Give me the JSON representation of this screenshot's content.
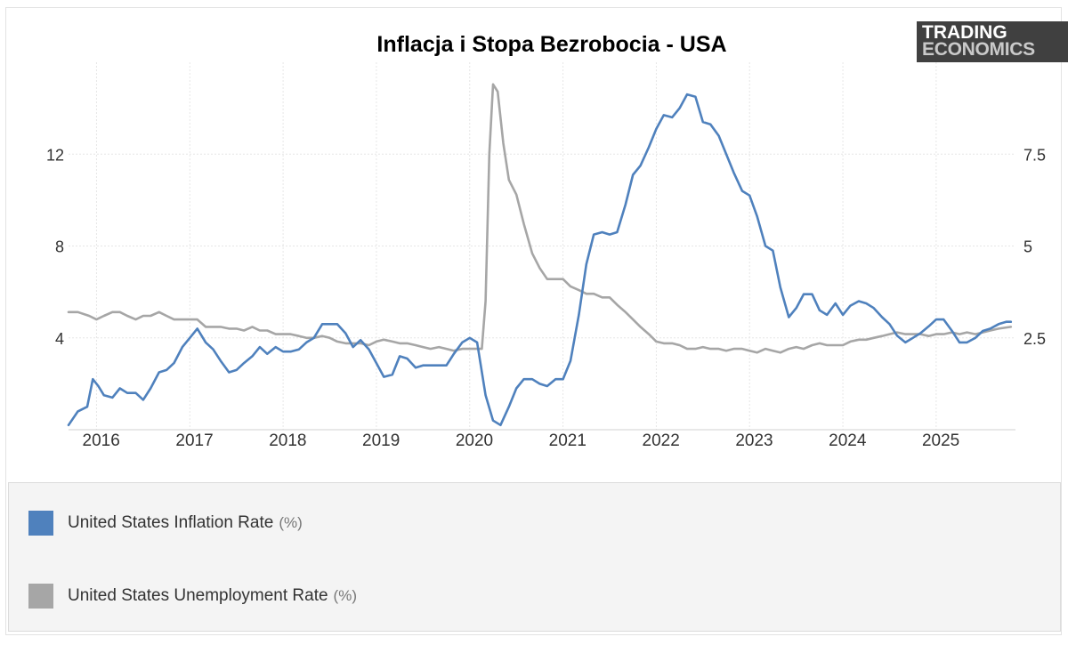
{
  "chart_data": {
    "type": "line",
    "title": "Inflacja i Stopa Bezrobocia - USA",
    "source_logo": {
      "line1": "TRADING",
      "line2": "ECONOMICS"
    },
    "x_range": [
      2015.7,
      2025.85
    ],
    "x_ticks": [
      "2016",
      "2017",
      "2018",
      "2019",
      "2020",
      "2021",
      "2022",
      "2023",
      "2024",
      "2025"
    ],
    "y_left": {
      "ticks": [
        "4",
        "8",
        "12"
      ],
      "tick_values": [
        4,
        8,
        12
      ],
      "range": [
        0,
        16
      ]
    },
    "y_right": {
      "ticks": [
        "2.5",
        "5",
        "7.5"
      ],
      "tick_values": [
        2.5,
        5,
        7.5
      ],
      "range": [
        0,
        10
      ]
    },
    "grid": true,
    "series": [
      {
        "name": "United States Inflation Rate",
        "unit": "(%)",
        "axis": "left",
        "color": "#4f81bd",
        "points": [
          [
            2015.7,
            0.2
          ],
          [
            2015.8,
            0.8
          ],
          [
            2015.9,
            1.0
          ],
          [
            2015.96,
            2.2
          ],
          [
            2016.02,
            1.9
          ],
          [
            2016.08,
            1.5
          ],
          [
            2016.17,
            1.4
          ],
          [
            2016.25,
            1.8
          ],
          [
            2016.33,
            1.6
          ],
          [
            2016.42,
            1.6
          ],
          [
            2016.5,
            1.3
          ],
          [
            2016.58,
            1.8
          ],
          [
            2016.67,
            2.5
          ],
          [
            2016.75,
            2.6
          ],
          [
            2016.83,
            2.9
          ],
          [
            2016.92,
            3.6
          ],
          [
            2017.0,
            4.0
          ],
          [
            2017.08,
            4.4
          ],
          [
            2017.17,
            3.8
          ],
          [
            2017.25,
            3.5
          ],
          [
            2017.33,
            3.0
          ],
          [
            2017.42,
            2.5
          ],
          [
            2017.5,
            2.6
          ],
          [
            2017.58,
            2.9
          ],
          [
            2017.67,
            3.2
          ],
          [
            2017.75,
            3.6
          ],
          [
            2017.83,
            3.3
          ],
          [
            2017.92,
            3.6
          ],
          [
            2018.0,
            3.4
          ],
          [
            2018.08,
            3.4
          ],
          [
            2018.17,
            3.5
          ],
          [
            2018.25,
            3.8
          ],
          [
            2018.33,
            4.0
          ],
          [
            2018.42,
            4.6
          ],
          [
            2018.5,
            4.6
          ],
          [
            2018.58,
            4.6
          ],
          [
            2018.67,
            4.2
          ],
          [
            2018.75,
            3.6
          ],
          [
            2018.83,
            3.9
          ],
          [
            2018.92,
            3.5
          ],
          [
            2019.0,
            2.9
          ],
          [
            2019.08,
            2.3
          ],
          [
            2019.17,
            2.4
          ],
          [
            2019.25,
            3.2
          ],
          [
            2019.33,
            3.1
          ],
          [
            2019.42,
            2.7
          ],
          [
            2019.5,
            2.8
          ],
          [
            2019.58,
            2.8
          ],
          [
            2019.67,
            2.8
          ],
          [
            2019.75,
            2.8
          ],
          [
            2019.83,
            3.3
          ],
          [
            2019.92,
            3.8
          ],
          [
            2020.0,
            4.0
          ],
          [
            2020.08,
            3.8
          ],
          [
            2020.17,
            1.5
          ],
          [
            2020.25,
            0.4
          ],
          [
            2020.33,
            0.2
          ],
          [
            2020.42,
            1.0
          ],
          [
            2020.5,
            1.8
          ],
          [
            2020.58,
            2.2
          ],
          [
            2020.67,
            2.2
          ],
          [
            2020.75,
            2.0
          ],
          [
            2020.83,
            1.9
          ],
          [
            2020.92,
            2.2
          ],
          [
            2021.0,
            2.2
          ],
          [
            2021.08,
            3.0
          ],
          [
            2021.17,
            5.0
          ],
          [
            2021.25,
            7.2
          ],
          [
            2021.33,
            8.5
          ],
          [
            2021.42,
            8.6
          ],
          [
            2021.5,
            8.5
          ],
          [
            2021.58,
            8.6
          ],
          [
            2021.67,
            9.8
          ],
          [
            2021.75,
            11.1
          ],
          [
            2021.83,
            11.5
          ],
          [
            2021.92,
            12.3
          ],
          [
            2022.0,
            13.1
          ],
          [
            2022.08,
            13.7
          ],
          [
            2022.17,
            13.6
          ],
          [
            2022.25,
            14.0
          ],
          [
            2022.33,
            14.6
          ],
          [
            2022.42,
            14.5
          ],
          [
            2022.5,
            13.4
          ],
          [
            2022.58,
            13.3
          ],
          [
            2022.67,
            12.8
          ],
          [
            2022.75,
            12.0
          ],
          [
            2022.83,
            11.2
          ],
          [
            2022.92,
            10.4
          ],
          [
            2023.0,
            10.2
          ],
          [
            2023.08,
            9.3
          ],
          [
            2023.17,
            8.0
          ],
          [
            2023.25,
            7.8
          ],
          [
            2023.33,
            6.2
          ],
          [
            2023.42,
            4.9
          ],
          [
            2023.5,
            5.3
          ],
          [
            2023.58,
            5.9
          ],
          [
            2023.67,
            5.9
          ],
          [
            2023.75,
            5.2
          ],
          [
            2023.83,
            5.0
          ],
          [
            2023.92,
            5.5
          ],
          [
            2024.0,
            5.0
          ],
          [
            2024.08,
            5.4
          ],
          [
            2024.17,
            5.6
          ],
          [
            2024.25,
            5.5
          ],
          [
            2024.33,
            5.3
          ],
          [
            2024.42,
            4.9
          ],
          [
            2024.5,
            4.6
          ],
          [
            2024.58,
            4.1
          ],
          [
            2024.67,
            3.8
          ],
          [
            2024.75,
            4.0
          ],
          [
            2024.83,
            4.2
          ],
          [
            2024.92,
            4.5
          ],
          [
            2025.0,
            4.8
          ],
          [
            2025.08,
            4.8
          ],
          [
            2025.17,
            4.3
          ],
          [
            2025.25,
            3.8
          ],
          [
            2025.33,
            3.8
          ],
          [
            2025.42,
            4.0
          ],
          [
            2025.5,
            4.3
          ],
          [
            2025.58,
            4.4
          ],
          [
            2025.67,
            4.6
          ],
          [
            2025.75,
            4.7
          ],
          [
            2025.8,
            4.7
          ]
        ]
      },
      {
        "name": "United States Unemployment Rate",
        "unit": "(%)",
        "axis": "right",
        "color": "#a6a6a6",
        "points": [
          [
            2015.7,
            3.2
          ],
          [
            2015.8,
            3.2
          ],
          [
            2015.92,
            3.1
          ],
          [
            2016.0,
            3.0
          ],
          [
            2016.08,
            3.1
          ],
          [
            2016.17,
            3.2
          ],
          [
            2016.25,
            3.2
          ],
          [
            2016.33,
            3.1
          ],
          [
            2016.42,
            3.0
          ],
          [
            2016.5,
            3.1
          ],
          [
            2016.58,
            3.1
          ],
          [
            2016.67,
            3.2
          ],
          [
            2016.75,
            3.1
          ],
          [
            2016.83,
            3.0
          ],
          [
            2016.92,
            3.0
          ],
          [
            2017.0,
            3.0
          ],
          [
            2017.08,
            3.0
          ],
          [
            2017.17,
            2.8
          ],
          [
            2017.25,
            2.8
          ],
          [
            2017.33,
            2.8
          ],
          [
            2017.42,
            2.75
          ],
          [
            2017.5,
            2.75
          ],
          [
            2017.58,
            2.7
          ],
          [
            2017.67,
            2.8
          ],
          [
            2017.75,
            2.7
          ],
          [
            2017.83,
            2.7
          ],
          [
            2017.92,
            2.6
          ],
          [
            2018.0,
            2.6
          ],
          [
            2018.08,
            2.6
          ],
          [
            2018.17,
            2.55
          ],
          [
            2018.25,
            2.5
          ],
          [
            2018.33,
            2.5
          ],
          [
            2018.42,
            2.55
          ],
          [
            2018.5,
            2.5
          ],
          [
            2018.58,
            2.4
          ],
          [
            2018.67,
            2.35
          ],
          [
            2018.75,
            2.35
          ],
          [
            2018.83,
            2.35
          ],
          [
            2018.92,
            2.3
          ],
          [
            2019.0,
            2.4
          ],
          [
            2019.08,
            2.45
          ],
          [
            2019.17,
            2.4
          ],
          [
            2019.25,
            2.35
          ],
          [
            2019.33,
            2.35
          ],
          [
            2019.42,
            2.3
          ],
          [
            2019.5,
            2.25
          ],
          [
            2019.58,
            2.2
          ],
          [
            2019.67,
            2.25
          ],
          [
            2019.75,
            2.2
          ],
          [
            2019.83,
            2.15
          ],
          [
            2019.92,
            2.2
          ],
          [
            2020.0,
            2.2
          ],
          [
            2020.08,
            2.2
          ],
          [
            2020.13,
            2.2
          ],
          [
            2020.17,
            3.5
          ],
          [
            2020.21,
            7.5
          ],
          [
            2020.25,
            9.4
          ],
          [
            2020.3,
            9.2
          ],
          [
            2020.36,
            7.8
          ],
          [
            2020.42,
            6.8
          ],
          [
            2020.5,
            6.4
          ],
          [
            2020.58,
            5.6
          ],
          [
            2020.67,
            4.8
          ],
          [
            2020.75,
            4.4
          ],
          [
            2020.83,
            4.1
          ],
          [
            2020.92,
            4.1
          ],
          [
            2021.0,
            4.1
          ],
          [
            2021.08,
            3.9
          ],
          [
            2021.17,
            3.8
          ],
          [
            2021.25,
            3.7
          ],
          [
            2021.33,
            3.7
          ],
          [
            2021.42,
            3.6
          ],
          [
            2021.5,
            3.6
          ],
          [
            2021.58,
            3.4
          ],
          [
            2021.67,
            3.2
          ],
          [
            2021.75,
            3.0
          ],
          [
            2021.83,
            2.8
          ],
          [
            2021.92,
            2.6
          ],
          [
            2022.0,
            2.4
          ],
          [
            2022.08,
            2.35
          ],
          [
            2022.17,
            2.35
          ],
          [
            2022.25,
            2.3
          ],
          [
            2022.33,
            2.2
          ],
          [
            2022.42,
            2.2
          ],
          [
            2022.5,
            2.25
          ],
          [
            2022.58,
            2.2
          ],
          [
            2022.67,
            2.2
          ],
          [
            2022.75,
            2.15
          ],
          [
            2022.83,
            2.2
          ],
          [
            2022.92,
            2.2
          ],
          [
            2023.0,
            2.15
          ],
          [
            2023.08,
            2.1
          ],
          [
            2023.17,
            2.2
          ],
          [
            2023.25,
            2.15
          ],
          [
            2023.33,
            2.1
          ],
          [
            2023.42,
            2.2
          ],
          [
            2023.5,
            2.25
          ],
          [
            2023.58,
            2.2
          ],
          [
            2023.67,
            2.3
          ],
          [
            2023.75,
            2.35
          ],
          [
            2023.83,
            2.3
          ],
          [
            2023.92,
            2.3
          ],
          [
            2024.0,
            2.3
          ],
          [
            2024.08,
            2.4
          ],
          [
            2024.17,
            2.45
          ],
          [
            2024.25,
            2.45
          ],
          [
            2024.33,
            2.5
          ],
          [
            2024.42,
            2.55
          ],
          [
            2024.5,
            2.6
          ],
          [
            2024.58,
            2.65
          ],
          [
            2024.67,
            2.6
          ],
          [
            2024.75,
            2.6
          ],
          [
            2024.83,
            2.6
          ],
          [
            2024.92,
            2.55
          ],
          [
            2025.0,
            2.6
          ],
          [
            2025.08,
            2.6
          ],
          [
            2025.17,
            2.65
          ],
          [
            2025.25,
            2.6
          ],
          [
            2025.33,
            2.65
          ],
          [
            2025.42,
            2.6
          ],
          [
            2025.5,
            2.65
          ],
          [
            2025.58,
            2.7
          ],
          [
            2025.67,
            2.75
          ],
          [
            2025.8,
            2.8
          ]
        ]
      }
    ]
  }
}
